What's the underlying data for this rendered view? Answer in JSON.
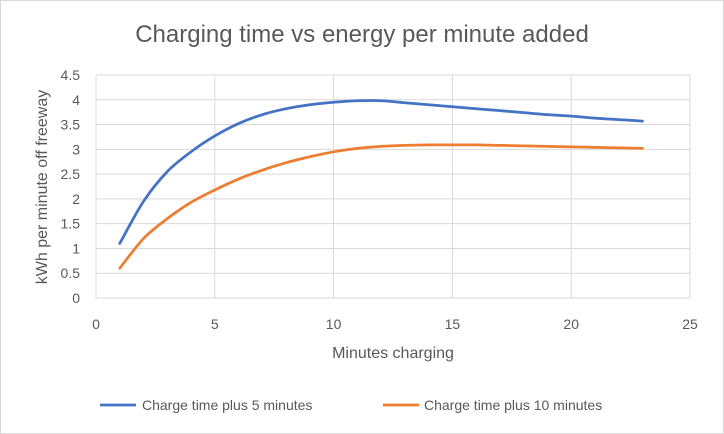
{
  "chart_data": {
    "type": "line",
    "title": "Charging time vs energy per minute added",
    "xlabel": "Minutes charging",
    "ylabel": "kWh per minute off freeway",
    "xlim": [
      0,
      25
    ],
    "ylim": [
      0,
      4.5
    ],
    "x_ticks": [
      0,
      5,
      10,
      15,
      20,
      25
    ],
    "y_ticks": [
      0,
      0.5,
      1,
      1.5,
      2,
      2.5,
      3,
      3.5,
      4,
      4.5
    ],
    "y_tick_labels": [
      "0",
      "0.5",
      "1",
      "1.5",
      "2",
      "2.5",
      "3",
      "3.5",
      "4",
      "4.5"
    ],
    "grid": "horizontal and vertical",
    "legend_position": "bottom",
    "series": [
      {
        "name": "Charge time plus 5 minutes",
        "color": "#4472c4",
        "x": [
          1,
          2,
          3,
          4,
          5,
          6,
          7,
          8,
          9,
          10,
          11,
          12,
          13,
          14,
          15,
          16,
          17,
          18,
          19,
          20,
          21,
          22,
          23
        ],
        "y": [
          1.1,
          1.95,
          2.55,
          2.95,
          3.27,
          3.52,
          3.7,
          3.82,
          3.9,
          3.95,
          3.98,
          3.98,
          3.94,
          3.9,
          3.86,
          3.82,
          3.78,
          3.74,
          3.7,
          3.67,
          3.63,
          3.6,
          3.57
        ]
      },
      {
        "name": "Charge time plus 10 minutes",
        "color": "#ed7d31",
        "x": [
          1,
          2,
          3,
          4,
          5,
          6,
          7,
          8,
          9,
          10,
          11,
          12,
          13,
          14,
          15,
          16,
          17,
          18,
          19,
          20,
          21,
          22,
          23
        ],
        "y": [
          0.6,
          1.2,
          1.6,
          1.93,
          2.18,
          2.4,
          2.58,
          2.73,
          2.85,
          2.95,
          3.02,
          3.06,
          3.08,
          3.09,
          3.09,
          3.09,
          3.08,
          3.07,
          3.06,
          3.05,
          3.04,
          3.03,
          3.02
        ]
      }
    ]
  }
}
